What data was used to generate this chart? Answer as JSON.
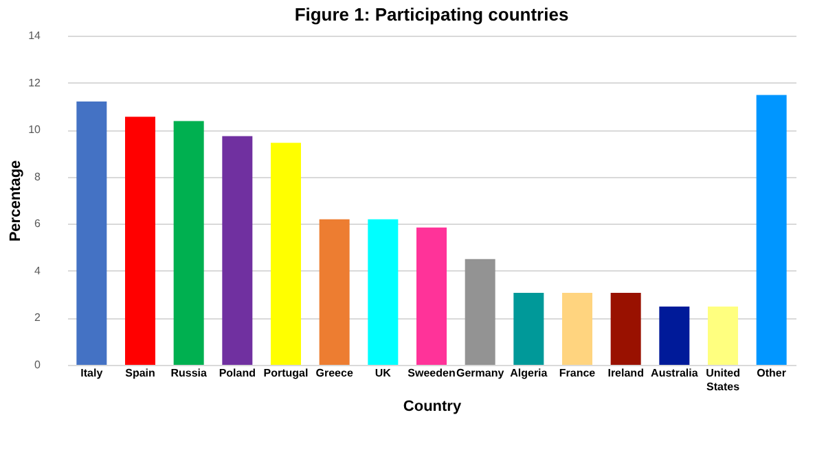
{
  "chart_data": {
    "type": "bar",
    "title": "Figure 1: Participating countries",
    "xlabel": "Country",
    "ylabel": "Percentage",
    "categories": [
      "Italy",
      "Spain",
      "Russia",
      "Poland",
      "Portugal",
      "Greece",
      "UK",
      "Sweeden",
      "Germany",
      "Algeria",
      "France",
      "Ireland",
      "Australia",
      "United States",
      "Other"
    ],
    "values": [
      11.2,
      10.55,
      10.37,
      9.73,
      9.44,
      6.19,
      6.19,
      5.84,
      4.5,
      3.06,
      3.06,
      3.06,
      2.48,
      2.48,
      11.48
    ],
    "colors": [
      "#4472c4",
      "#ff0000",
      "#00b050",
      "#7030a0",
      "#ffff00",
      "#ed7d31",
      "#00ffff",
      "#ff3399",
      "#939393",
      "#009999",
      "#ffd47f",
      "#991100",
      "#001a99",
      "#ffff7f",
      "#0096ff"
    ],
    "ylim": [
      0,
      14
    ],
    "yticks": [
      0,
      2,
      4,
      6,
      8,
      10,
      12,
      14
    ],
    "grid": "y"
  }
}
